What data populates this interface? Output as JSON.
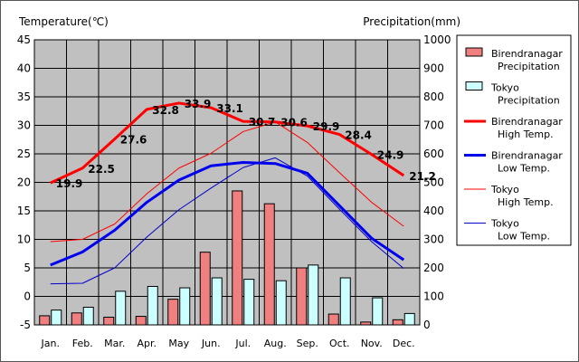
{
  "chart_data": {
    "type": "line",
    "left_axis_label": "Temperature(℃)",
    "right_axis_label": "Precipitation(mm)",
    "categories": [
      "Jan.",
      "Feb.",
      "Mar.",
      "Apr.",
      "May",
      "Jun.",
      "Jul.",
      "Aug.",
      "Sep.",
      "Oct.",
      "Nov.",
      "Dec."
    ],
    "temp_ylim": [
      -5,
      45
    ],
    "temp_ticks": [
      "45",
      "40",
      "35",
      "30",
      "25",
      "20",
      "15",
      "10",
      "5",
      "0",
      "-5"
    ],
    "precip_ylim": [
      0,
      1000
    ],
    "precip_ticks": [
      "1000",
      "900",
      "800",
      "700",
      "600",
      "500",
      "400",
      "300",
      "200",
      "100",
      "0"
    ],
    "grid": true,
    "legend_position": "right",
    "series": [
      {
        "name": "Birendranagar Precipitation",
        "legend_lines": [
          "Birendranagar",
          "Precipitation"
        ],
        "kind": "bar",
        "axis": "right",
        "color": "#f08080",
        "values": [
          32,
          42,
          27,
          30,
          90,
          255,
          470,
          425,
          200,
          38,
          10,
          18
        ]
      },
      {
        "name": "Tokyo Precipitation",
        "legend_lines": [
          "Tokyo",
          "Precipitation"
        ],
        "kind": "bar",
        "axis": "right",
        "color": "#ccffff",
        "values": [
          52,
          62,
          118,
          135,
          130,
          165,
          160,
          155,
          210,
          165,
          95,
          40
        ]
      },
      {
        "name": "Birendranagar High Temp.",
        "legend_lines": [
          "Birendranagar",
          "High Temp."
        ],
        "kind": "line",
        "axis": "left",
        "color": "#ff0000",
        "width": 3,
        "values": [
          19.9,
          22.5,
          27.6,
          32.8,
          33.9,
          33.1,
          30.7,
          30.6,
          29.9,
          28.4,
          24.9,
          21.2
        ],
        "labels": [
          "19.9",
          "22.5",
          "27.6",
          "32.8",
          "33.9",
          "33.1",
          "30.7",
          "30.6",
          "29.9",
          "28.4",
          "24.9",
          "21.2"
        ]
      },
      {
        "name": "Birendranagar Low Temp.",
        "legend_lines": [
          "Birendranagar",
          "Low Temp."
        ],
        "kind": "line",
        "axis": "left",
        "color": "#0000ee",
        "width": 3,
        "values": [
          5.5,
          7.8,
          11.6,
          16.5,
          20.4,
          22.9,
          23.5,
          23.3,
          21.6,
          15.9,
          10.2,
          6.4
        ]
      },
      {
        "name": "Tokyo High Temp.",
        "legend_lines": [
          "Tokyo",
          "High Temp."
        ],
        "kind": "line",
        "axis": "left",
        "color": "#ff0000",
        "width": 1,
        "values": [
          9.6,
          10.0,
          12.7,
          18.0,
          22.5,
          25.1,
          28.9,
          30.6,
          27.0,
          21.7,
          16.5,
          12.3
        ]
      },
      {
        "name": "Tokyo Low Temp.",
        "legend_lines": [
          "Tokyo",
          "Low Temp."
        ],
        "kind": "line",
        "axis": "left",
        "color": "#0000cc",
        "width": 1,
        "values": [
          2.2,
          2.3,
          5.0,
          10.4,
          15.2,
          19.0,
          22.6,
          24.3,
          21.1,
          15.3,
          9.6,
          4.9
        ]
      }
    ]
  }
}
